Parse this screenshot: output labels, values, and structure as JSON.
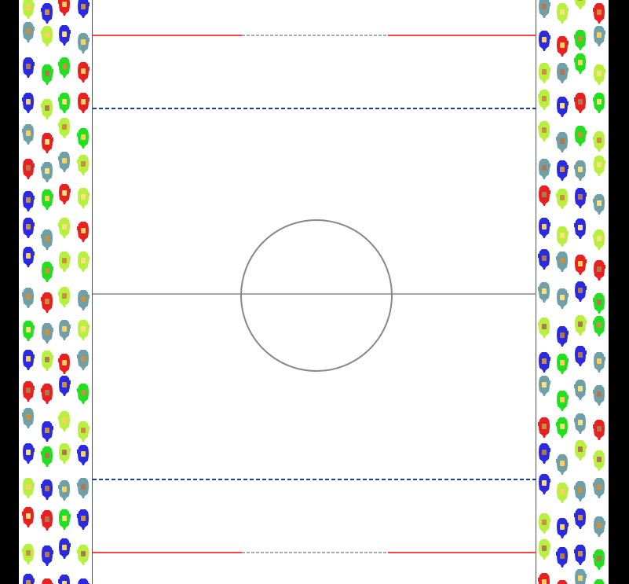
{
  "game": {
    "view": "lacrosse-field-top-down",
    "colors": {
      "background": "#000000",
      "field": "#ffffff",
      "end_line": "#ff4444",
      "end_line_gap": "#aaaaaa",
      "restraining_line": "#1f3fa0",
      "center_line": "#888888",
      "center_circle": "#888888",
      "sideline": "#555555"
    },
    "crowd": {
      "fan_colors": [
        "#2a2ae0",
        "#e82020",
        "#20e020",
        "#6fa0a8",
        "#b8f040"
      ],
      "fan_icon": "spectator-icon"
    }
  }
}
